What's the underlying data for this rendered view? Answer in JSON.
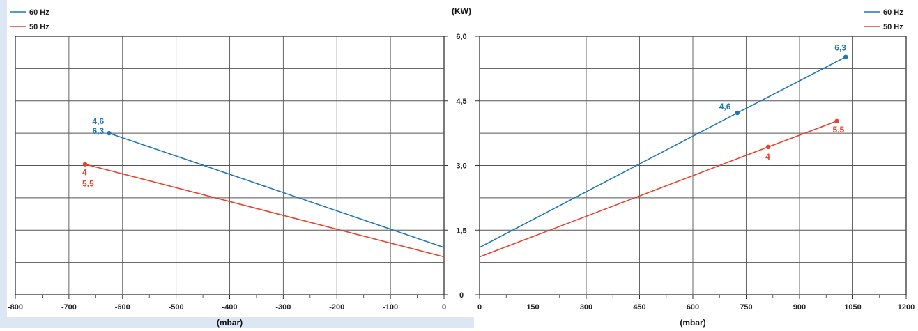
{
  "chart_data": [
    {
      "type": "line",
      "xlabel": "(mbar)",
      "ylabel": "",
      "xlim": [
        -800,
        0
      ],
      "ylim": [
        0,
        6.0
      ],
      "x_ticks": [
        "-800",
        "-700",
        "-600",
        "-500",
        "-400",
        "-300",
        "-200",
        "-100",
        "0"
      ],
      "grid": true,
      "legend": "top-left",
      "series": [
        {
          "name": "60 Hz",
          "color": "#1f77b4",
          "x": [
            -625,
            0
          ],
          "y": [
            3.75,
            1.1
          ],
          "marker": {
            "x": -625,
            "y": 3.75,
            "labels": [
              "4,6",
              "6,3"
            ]
          }
        },
        {
          "name": "50 Hz",
          "color": "#e8412c",
          "x": [
            -670,
            0
          ],
          "y": [
            3.03,
            0.88
          ],
          "marker": {
            "x": -670,
            "y": 3.03,
            "labels": [
              "4",
              "5,5"
            ]
          }
        }
      ]
    },
    {
      "type": "line",
      "xlabel": "(mbar)",
      "ylabel": "(KW)",
      "xlim": [
        0,
        1200
      ],
      "ylim": [
        0,
        6.0
      ],
      "x_ticks": [
        "0",
        "150",
        "300",
        "450",
        "600",
        "750",
        "900",
        "1050",
        "1200"
      ],
      "y_ticks": [
        "0",
        "1,5",
        "3,0",
        "4,5",
        "6,0"
      ],
      "grid": true,
      "legend": "top-right",
      "series": [
        {
          "name": "60 Hz",
          "color": "#1f77b4",
          "x": [
            0,
            725,
            1030
          ],
          "y": [
            1.1,
            4.22,
            5.52
          ],
          "markers": [
            {
              "x": 725,
              "y": 4.22,
              "label": "4,6"
            },
            {
              "x": 1030,
              "y": 5.52,
              "label": "6,3"
            }
          ]
        },
        {
          "name": "50 Hz",
          "color": "#e8412c",
          "x": [
            0,
            812,
            1005
          ],
          "y": [
            0.88,
            3.43,
            4.03
          ],
          "markers": [
            {
              "x": 812,
              "y": 3.43,
              "label": "4"
            },
            {
              "x": 1005,
              "y": 4.03,
              "label": "5,5"
            }
          ]
        }
      ]
    }
  ]
}
